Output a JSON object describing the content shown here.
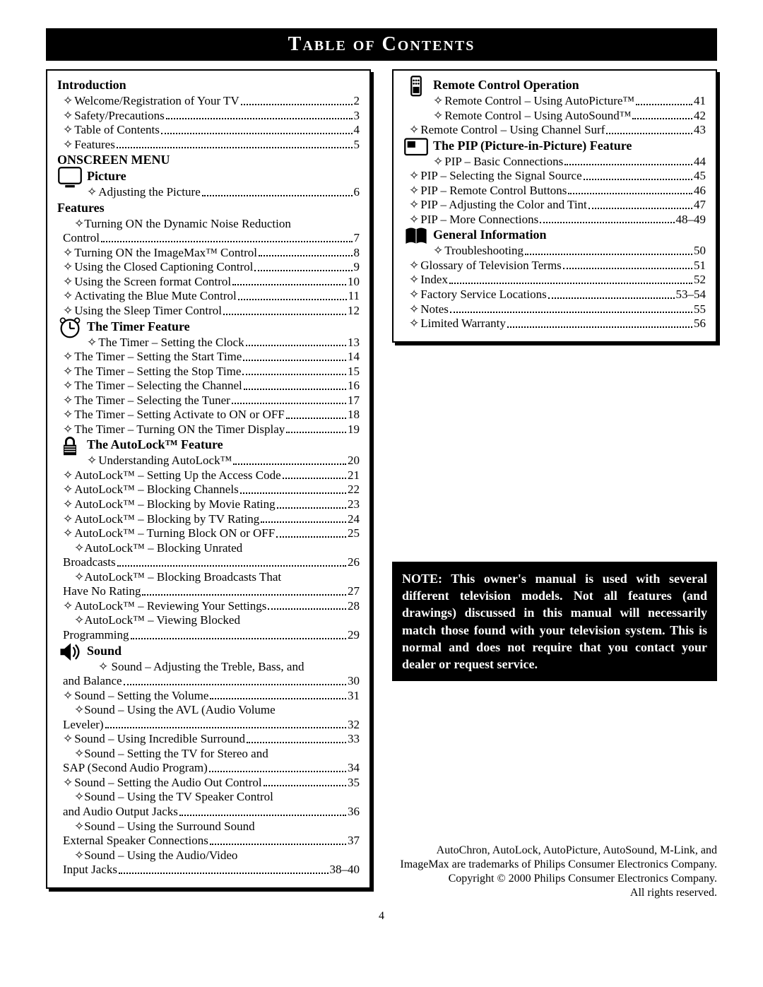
{
  "title": "Table of Contents",
  "page_number": "4",
  "note": "NOTE: This owner's manual is used with several different television models.  Not all features (and  drawings) discussed in this manual will necessarily match those found with your television system. This is normal and does not require that you contact your dealer or request service.",
  "trademark": [
    "AutoChron, AutoLock, AutoPicture, AutoSound, M-Link, and",
    "ImageMax are trademarks of Philips Consumer Electronics Company.",
    "Copyright © 2000 Philips Consumer Electronics Company.",
    "All rights reserved."
  ],
  "left": [
    {
      "t": "head",
      "text": "Introduction"
    },
    {
      "t": "e",
      "i": 0,
      "label": "Welcome/Registration of Your TV",
      "pg": "2"
    },
    {
      "t": "e",
      "i": 0,
      "label": "Safety/Precautions",
      "pg": "3"
    },
    {
      "t": "e",
      "i": 0,
      "label": "Table of Contents",
      "pg": "4"
    },
    {
      "t": "e",
      "i": 0,
      "label": "Features",
      "pg": "5"
    },
    {
      "t": "head",
      "text": "ONSCREEN MENU"
    },
    {
      "t": "sub",
      "text": "Picture",
      "icon": "monitor"
    },
    {
      "t": "e",
      "i": 1,
      "label": "Adjusting the Picture",
      "pg": "6"
    },
    {
      "t": "head",
      "text": "Features"
    },
    {
      "t": "cont",
      "i": 0,
      "text": "✧Turning ON the Dynamic Noise Reduction"
    },
    {
      "t": "e",
      "i": 0,
      "nb": 1,
      "label": "  Control",
      "pg": "7"
    },
    {
      "t": "e",
      "i": 0,
      "label": "Turning ON the ImageMax™ Control",
      "pg": "8"
    },
    {
      "t": "e",
      "i": 0,
      "label": "Using the Closed Captioning Control",
      "pg": "9"
    },
    {
      "t": "e",
      "i": 0,
      "label": "Using the Screen format Control",
      "pg": "10"
    },
    {
      "t": "e",
      "i": 0,
      "label": "Activating the Blue Mute Control",
      "pg": "11"
    },
    {
      "t": "e",
      "i": 0,
      "label": "Using the Sleep Timer Control",
      "pg": "12"
    },
    {
      "t": "sub",
      "text": "The Timer Feature",
      "icon": "clock"
    },
    {
      "t": "e",
      "i": 1,
      "label": "The Timer – Setting the Clock",
      "pg": "13"
    },
    {
      "t": "e",
      "i": 0,
      "label": "The Timer – Setting the Start Time",
      "pg": "14"
    },
    {
      "t": "e",
      "i": 0,
      "label": "The Timer – Setting the Stop Time",
      "pg": "15"
    },
    {
      "t": "e",
      "i": 0,
      "label": "The Timer – Selecting the Channel",
      "pg": "16"
    },
    {
      "t": "e",
      "i": 0,
      "label": "The Timer – Selecting the Tuner",
      "pg": "17"
    },
    {
      "t": "e",
      "i": 0,
      "label": "The Timer – Setting Activate to ON or OFF",
      "pg": "18"
    },
    {
      "t": "e",
      "i": 0,
      "label": "The Timer – Turning ON the Timer Display",
      "pg": "19"
    },
    {
      "t": "sub",
      "text": "The AutoLock™ Feature",
      "icon": "lock"
    },
    {
      "t": "e",
      "i": 1,
      "label": "Understanding AutoLock™",
      "pg": "20"
    },
    {
      "t": "e",
      "i": 0,
      "label": "AutoLock™ – Setting Up the Access Code",
      "pg": "21"
    },
    {
      "t": "e",
      "i": 0,
      "label": "AutoLock™ – Blocking Channels",
      "pg": "22"
    },
    {
      "t": "e",
      "i": 0,
      "label": "AutoLock™ – Blocking by Movie Rating",
      "pg": "23"
    },
    {
      "t": "e",
      "i": 0,
      "label": "AutoLock™ – Blocking by TV Rating",
      "pg": "24"
    },
    {
      "t": "e",
      "i": 0,
      "label": "AutoLock™ – Turning Block ON or OFF",
      "pg": "25"
    },
    {
      "t": "cont",
      "i": 0,
      "text": "✧AutoLock™ – Blocking Unrated"
    },
    {
      "t": "e",
      "i": 0,
      "nb": 1,
      "label": "  Broadcasts",
      "pg": "26"
    },
    {
      "t": "cont",
      "i": 0,
      "text": "✧AutoLock™ – Blocking Broadcasts That"
    },
    {
      "t": "e",
      "i": 0,
      "nb": 1,
      "label": "  Have No Rating",
      "pg": "27"
    },
    {
      "t": "e",
      "i": 0,
      "label": "AutoLock™ – Reviewing Your Settings",
      "pg": "28"
    },
    {
      "t": "cont",
      "i": 0,
      "text": "✧AutoLock™ – Viewing Blocked"
    },
    {
      "t": "e",
      "i": 0,
      "nb": 1,
      "label": "  Programming",
      "pg": "29"
    },
    {
      "t": "sub",
      "text": "Sound",
      "icon": "speaker"
    },
    {
      "t": "cont",
      "i": 1,
      "text": "✧ Sound – Adjusting the Treble, Bass, and"
    },
    {
      "t": "e",
      "i": 0,
      "nb": 1,
      "label": "  and Balance",
      "pg": "30"
    },
    {
      "t": "e",
      "i": 0,
      "label": "Sound – Setting the Volume",
      "pg": "31"
    },
    {
      "t": "cont",
      "i": 0,
      "text": "✧Sound – Using the AVL (Audio Volume"
    },
    {
      "t": "e",
      "i": 0,
      "nb": 1,
      "label": "  Leveler)",
      "pg": "32"
    },
    {
      "t": "e",
      "i": 0,
      "label": "Sound – Using Incredible Surround",
      "pg": "33"
    },
    {
      "t": "cont",
      "i": 0,
      "text": "✧Sound – Setting the TV for Stereo and"
    },
    {
      "t": "e",
      "i": 0,
      "nb": 1,
      "label": "  SAP (Second Audio Program)",
      "pg": "34"
    },
    {
      "t": "e",
      "i": 0,
      "label": "Sound – Setting the Audio Out Control",
      "pg": "35"
    },
    {
      "t": "cont",
      "i": 0,
      "text": "✧Sound – Using the TV Speaker Control"
    },
    {
      "t": "e",
      "i": 0,
      "nb": 1,
      "label": "  and Audio Output Jacks",
      "pg": "36"
    },
    {
      "t": "cont",
      "i": 0,
      "text": "✧Sound – Using the Surround Sound"
    },
    {
      "t": "e",
      "i": 0,
      "nb": 1,
      "label": "  External Speaker Connections",
      "pg": "37"
    },
    {
      "t": "cont",
      "i": 0,
      "text": "✧Sound – Using the Audio/Video"
    },
    {
      "t": "e",
      "i": 0,
      "nb": 1,
      "label": "  Input Jacks",
      "pg": "38–40"
    }
  ],
  "right": [
    {
      "t": "sub",
      "text": "Remote Control Operation",
      "icon": "remote"
    },
    {
      "t": "e",
      "i": 1,
      "label": "Remote Control – Using AutoPicture™",
      "pg": "41"
    },
    {
      "t": "e",
      "i": 1,
      "label": "Remote Control – Using AutoSound™",
      "pg": "42"
    },
    {
      "t": "e",
      "i": 0,
      "label": "Remote Control – Using Channel Surf",
      "pg": "43"
    },
    {
      "t": "sub",
      "text": "The PIP (Picture-in-Picture) Feature",
      "icon": "pip"
    },
    {
      "t": "e",
      "i": 1,
      "label": "PIP – Basic Connections",
      "pg": "44"
    },
    {
      "t": "e",
      "i": 0,
      "label": "PIP – Selecting the Signal Source",
      "pg": "45"
    },
    {
      "t": "e",
      "i": 0,
      "label": "PIP – Remote Control Buttons",
      "pg": "46"
    },
    {
      "t": "e",
      "i": 0,
      "label": "PIP – Adjusting the Color and Tint",
      "pg": "47"
    },
    {
      "t": "e",
      "i": 0,
      "label": "PIP – More Connections",
      "pg": "48–49"
    },
    {
      "t": "sub",
      "text": "General Information",
      "icon": "book"
    },
    {
      "t": "e",
      "i": 1,
      "label": "Troubleshooting",
      "pg": "50"
    },
    {
      "t": "e",
      "i": 0,
      "label": "Glossary of Television Terms",
      "pg": "51"
    },
    {
      "t": "e",
      "i": 0,
      "label": "Index",
      "pg": "52"
    },
    {
      "t": "e",
      "i": 0,
      "label": "Factory Service Locations",
      "pg": "53–54"
    },
    {
      "t": "e",
      "i": 0,
      "label": "Notes",
      "pg": "55"
    },
    {
      "t": "e",
      "i": 0,
      "label": "Limited Warranty",
      "pg": "56"
    }
  ],
  "icons": {
    "monitor": "tv-icon",
    "clock": "clock-icon",
    "lock": "lock-icon",
    "speaker": "speaker-icon",
    "remote": "remote-icon",
    "pip": "pip-icon",
    "book": "book-icon"
  },
  "colors": {
    "bg": "#ffffff",
    "fg": "#000000"
  }
}
